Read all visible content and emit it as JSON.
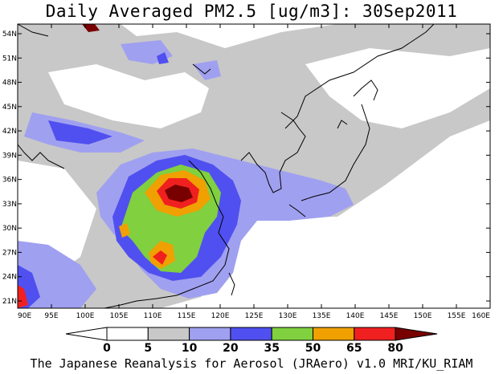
{
  "title": "Daily Averaged PM2.5 [ug/m3]: 30Sep2011",
  "footer": "The Japanese Reanalysis for Aerosol (JRAero) v1.0 MRI/KU_RIAM",
  "map": {
    "lon_labels": [
      "90E",
      "95E",
      "100E",
      "105E",
      "110E",
      "115E",
      "120E",
      "125E",
      "130E",
      "135E",
      "140E",
      "145E",
      "150E",
      "155E",
      "160E"
    ],
    "lat_labels": [
      "54N",
      "51N",
      "48N",
      "45N",
      "42N",
      "39N",
      "36N",
      "33N",
      "30N",
      "27N",
      "24N",
      "21N"
    ]
  },
  "colorbar": {
    "labels": [
      "0",
      "5",
      "10",
      "20",
      "35",
      "50",
      "65",
      "80"
    ],
    "colors": [
      "#ffffff",
      "#c8c8c8",
      "#a0a0f0",
      "#5050f0",
      "#80d040",
      "#f0a000",
      "#f02020",
      "#780000"
    ]
  }
}
